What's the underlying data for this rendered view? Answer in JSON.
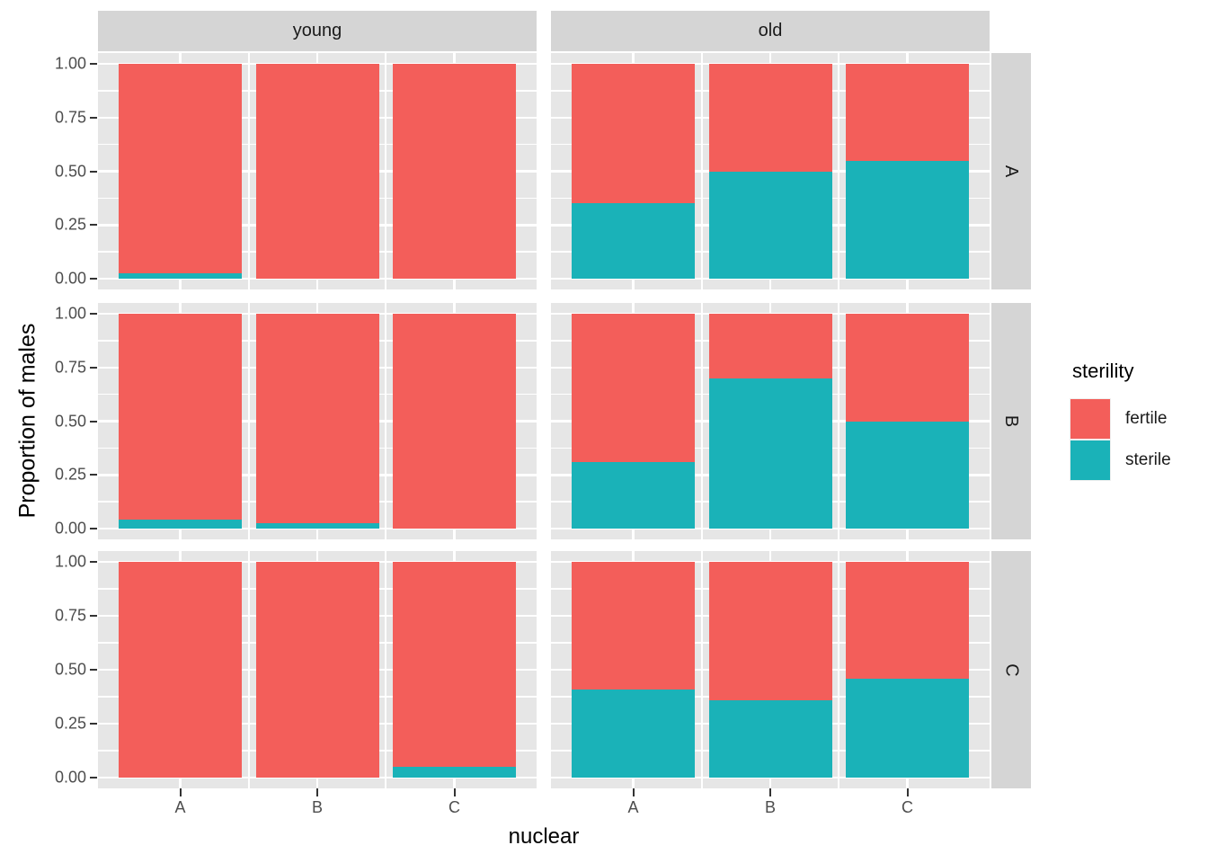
{
  "figure": {
    "y_axis": {
      "title": "Proportion of males",
      "tick_labels": [
        "1.00",
        "0.75",
        "0.50",
        "0.25",
        "0.00"
      ]
    },
    "x_axis": {
      "title": "nuclear",
      "tick_labels": [
        "A",
        "B",
        "C"
      ]
    },
    "facets": {
      "col_labels": [
        "young",
        "old"
      ],
      "row_labels": [
        "A",
        "B",
        "C"
      ]
    },
    "legend": {
      "title": "sterility",
      "items": [
        {
          "label": "fertile",
          "color": "#F35E5A"
        },
        {
          "label": "sterile",
          "color": "#1AB2B8"
        }
      ]
    },
    "colors": {
      "fertile": "#F35E5A",
      "sterile": "#1AB2B8",
      "panel_bg": "#E6E6E6",
      "strip_bg": "#D5D5D5",
      "gridline": "#FFFFFF",
      "axis_text": "#4d4d4d",
      "tick_mark": "#333333"
    }
  },
  "chart_data": {
    "type": "bar",
    "stacked": true,
    "normalized": true,
    "title": "",
    "xlabel": "nuclear",
    "ylabel": "Proportion of males",
    "ylim": [
      0,
      1
    ],
    "y_major_ticks": [
      0,
      0.25,
      0.5,
      0.75,
      1.0
    ],
    "y_minor_ticks": [
      0.125,
      0.375,
      0.625,
      0.875
    ],
    "categories": [
      "A",
      "B",
      "C"
    ],
    "facet_columns": [
      "young",
      "old"
    ],
    "facet_rows": [
      "A",
      "B",
      "C"
    ],
    "series_names": [
      "fertile",
      "sterile"
    ],
    "legend_title": "sterility",
    "legend_position": "right",
    "grid": true,
    "panels": [
      {
        "col": "young",
        "row": "A",
        "sterile": [
          0.025,
          0.0,
          0.0
        ],
        "fertile": [
          0.975,
          1.0,
          1.0
        ]
      },
      {
        "col": "old",
        "row": "A",
        "sterile": [
          0.35,
          0.5,
          0.55
        ],
        "fertile": [
          0.65,
          0.5,
          0.45
        ]
      },
      {
        "col": "young",
        "row": "B",
        "sterile": [
          0.04,
          0.025,
          0.0
        ],
        "fertile": [
          0.96,
          0.975,
          1.0
        ]
      },
      {
        "col": "old",
        "row": "B",
        "sterile": [
          0.31,
          0.7,
          0.5
        ],
        "fertile": [
          0.69,
          0.3,
          0.5
        ]
      },
      {
        "col": "young",
        "row": "C",
        "sterile": [
          0.0,
          0.0,
          0.05
        ],
        "fertile": [
          1.0,
          1.0,
          0.95
        ]
      },
      {
        "col": "old",
        "row": "C",
        "sterile": [
          0.41,
          0.36,
          0.46
        ],
        "fertile": [
          0.59,
          0.64,
          0.54
        ]
      }
    ]
  }
}
